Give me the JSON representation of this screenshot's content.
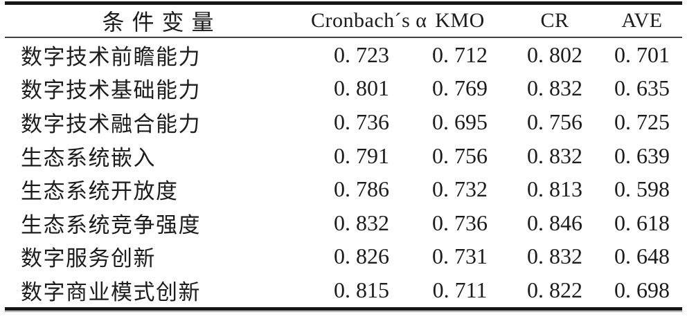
{
  "table": {
    "columns": [
      "条件变量",
      "Cronbach´s α",
      "KMO",
      "CR",
      "AVE"
    ],
    "rows": [
      {
        "label": "数字技术前瞻能力",
        "values": [
          "0.723",
          "0.712",
          "0.802",
          "0.701"
        ]
      },
      {
        "label": "数字技术基础能力",
        "values": [
          "0.801",
          "0.769",
          "0.832",
          "0.635"
        ]
      },
      {
        "label": "数字技术融合能力",
        "values": [
          "0.736",
          "0.695",
          "0.756",
          "0.725"
        ]
      },
      {
        "label": "生态系统嵌入",
        "values": [
          "0.791",
          "0.756",
          "0.832",
          "0.639"
        ]
      },
      {
        "label": "生态系统开放度",
        "values": [
          "0.786",
          "0.732",
          "0.813",
          "0.598"
        ]
      },
      {
        "label": "生态系统竞争强度",
        "values": [
          "0.832",
          "0.736",
          "0.846",
          "0.618"
        ]
      },
      {
        "label": "数字服务创新",
        "values": [
          "0.826",
          "0.731",
          "0.832",
          "0.648"
        ]
      },
      {
        "label": "数字商业模式创新",
        "values": [
          "0.815",
          "0.711",
          "0.822",
          "0.698"
        ]
      }
    ]
  },
  "colors": {
    "text": "#1c1c1c",
    "rule_heavy": "#161616",
    "rule_light": "#3e3e3e",
    "background": "#fefefe"
  }
}
